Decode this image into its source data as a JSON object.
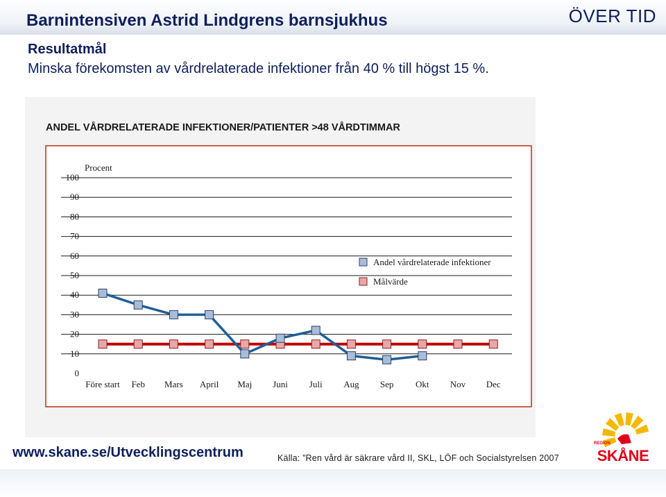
{
  "header": {
    "title": "Barnintensiven Astrid Lindgrens barnsjukhus",
    "corner_label": "ÖVER TID"
  },
  "content": {
    "heading": "Resultatmål",
    "text": "Minska förekomsten av vårdrelaterade infektioner från 40 % till högst 15 %."
  },
  "chart_data": {
    "type": "line",
    "title": "ANDEL VÅRDRELATERADE INFEKTIONER/PATIENTER >48 VÅRDTIMMAR",
    "ylabel": "Procent",
    "xlabel": "",
    "ylim": [
      0,
      100
    ],
    "yticks": [
      0,
      10,
      20,
      30,
      40,
      50,
      60,
      70,
      80,
      90,
      100
    ],
    "categories": [
      "Före start",
      "Feb",
      "Mars",
      "April",
      "Maj",
      "Juni",
      "Juli",
      "Aug",
      "Sep",
      "Okt",
      "Nov",
      "Dec"
    ],
    "series": [
      {
        "name": "Andel vårdrelaterade infektioner",
        "color": "#1f5f96",
        "marker_color": "#a9bdd9",
        "values": [
          41,
          35,
          30,
          30,
          10,
          18,
          22,
          9,
          7,
          9,
          null,
          null
        ]
      },
      {
        "name": "Målvärde",
        "color": "#c00000",
        "marker_color": "#e9a8a8",
        "values": [
          15,
          15,
          15,
          15,
          15,
          15,
          15,
          15,
          15,
          15,
          15,
          15
        ]
      }
    ],
    "grid": true,
    "legend": "right"
  },
  "footer": {
    "url": "www.skane.se/Utvecklingscentrum",
    "source": "Källa: ”Ren vård är säkrare vård II, SKL, LÖF och Socialstyrelsen 2007"
  },
  "logo": {
    "small_text": "REGION",
    "text": "SKÅNE",
    "color": "#e2001a",
    "accent": "#f5b800"
  }
}
